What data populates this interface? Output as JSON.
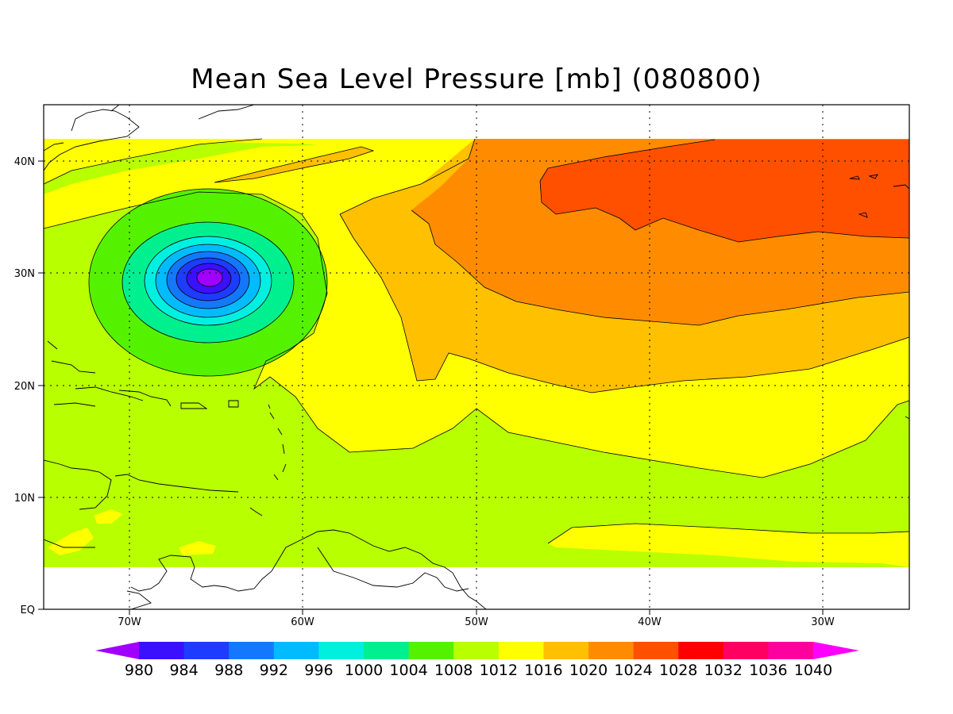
{
  "title": "Mean Sea Level Pressure [mb] (080800)",
  "axes": {
    "lon_ticks": [
      "70W",
      "60W",
      "50W",
      "40W",
      "30W"
    ],
    "lat_ticks": [
      "EQ",
      "10N",
      "20N",
      "30N",
      "40N"
    ]
  },
  "colorbar": {
    "levels": [
      "980",
      "984",
      "988",
      "992",
      "996",
      "1000",
      "1004",
      "1008",
      "1012",
      "1016",
      "1020",
      "1024",
      "1028",
      "1032",
      "1036",
      "1040"
    ],
    "colors": [
      "#a000ff",
      "#3a10ff",
      "#1e3cff",
      "#1478ff",
      "#00bcff",
      "#00f0e0",
      "#00f090",
      "#55f200",
      "#b8ff00",
      "#ffff00",
      "#ffc000",
      "#ff8c00",
      "#ff5000",
      "#ff0000",
      "#ff0060",
      "#ff00a0",
      "#ff00ff"
    ]
  },
  "chart_data": {
    "type": "heatmap",
    "title": "Mean Sea Level Pressure [mb] (080800)",
    "xlabel": "",
    "ylabel": "",
    "x_ticks": [
      "70W",
      "60W",
      "50W",
      "40W",
      "30W"
    ],
    "y_ticks": [
      "EQ",
      "10N",
      "20N",
      "30N",
      "40N"
    ],
    "lon_range": [
      -75,
      -25
    ],
    "lat_range": [
      0,
      45
    ],
    "contour_levels_mb": [
      980,
      984,
      988,
      992,
      996,
      1000,
      1004,
      1008,
      1012,
      1016,
      1020,
      1024,
      1028,
      1032,
      1036,
      1040
    ],
    "features": [
      {
        "kind": "low",
        "center_lon": -65.5,
        "center_lat": 29.5,
        "min_value_mb": 980
      },
      {
        "kind": "high",
        "center_lon": -33,
        "center_lat": 38,
        "max_value_mb": 1024
      },
      {
        "kind": "high-ridge",
        "center_lon": -55,
        "center_lat": 39.5,
        "max_value_mb": 1016
      }
    ],
    "grid": true
  }
}
